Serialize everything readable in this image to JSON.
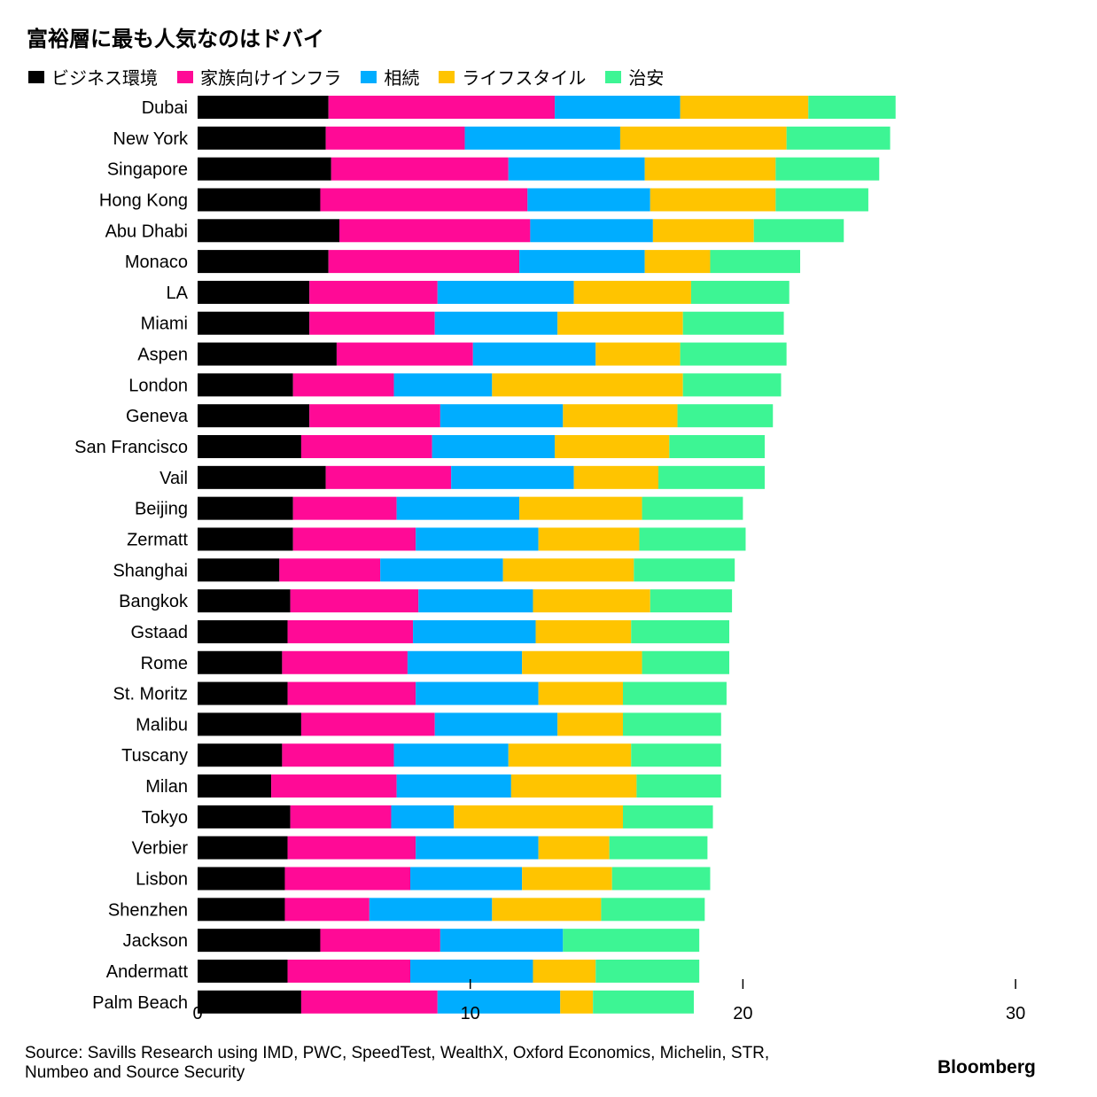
{
  "chart_data": {
    "type": "bar",
    "orientation": "horizontal",
    "stacked": true,
    "title": "富裕層に最も人気なのはドバイ",
    "categories": [
      "Dubai",
      "New York",
      "Singapore",
      "Hong Kong",
      "Abu Dhabi",
      "Monaco",
      "LA",
      "Miami",
      "Aspen",
      "London",
      "Geneva",
      "San Francisco",
      "Vail",
      "Beijing",
      "Zermatt",
      "Shanghai",
      "Bangkok",
      "Gstaad",
      "Rome",
      "St. Moritz",
      "Malibu",
      "Tuscany",
      "Milan",
      "Tokyo",
      "Verbier",
      "Lisbon",
      "Shenzhen",
      "Jackson",
      "Andermatt",
      "Palm Beach"
    ],
    "series": [
      {
        "name": "ビジネス環境",
        "color": "#000000",
        "values": [
          4.8,
          4.7,
          4.9,
          4.5,
          5.2,
          4.8,
          4.1,
          4.1,
          5.1,
          3.5,
          4.1,
          3.8,
          4.7,
          3.5,
          3.5,
          3.0,
          3.4,
          3.3,
          3.1,
          3.3,
          3.8,
          3.1,
          2.7,
          3.4,
          3.3,
          3.2,
          3.2,
          4.5,
          3.3,
          3.8
        ]
      },
      {
        "name": "家族向けインフラ",
        "color": "#ff0a96",
        "values": [
          8.3,
          5.1,
          6.5,
          7.6,
          7.0,
          7.0,
          4.7,
          4.6,
          5.0,
          3.7,
          4.8,
          4.8,
          4.6,
          3.8,
          4.5,
          3.7,
          4.7,
          4.6,
          4.6,
          4.7,
          4.9,
          4.1,
          4.6,
          3.7,
          4.7,
          4.6,
          3.1,
          4.4,
          4.5,
          5.0
        ]
      },
      {
        "name": "相続",
        "color": "#00adff",
        "values": [
          4.6,
          5.7,
          5.0,
          4.5,
          4.5,
          4.6,
          5.0,
          4.5,
          4.5,
          3.6,
          4.5,
          4.5,
          4.5,
          4.5,
          4.5,
          4.5,
          4.2,
          4.5,
          4.2,
          4.5,
          4.5,
          4.2,
          4.2,
          2.3,
          4.5,
          4.1,
          4.5,
          4.5,
          4.5,
          4.5
        ]
      },
      {
        "name": "ライフスタイル",
        "color": "#ffc400",
        "values": [
          4.7,
          6.1,
          4.8,
          4.6,
          3.7,
          2.4,
          4.3,
          4.6,
          3.1,
          7.0,
          4.2,
          4.2,
          3.1,
          4.5,
          3.7,
          4.8,
          4.3,
          3.5,
          4.4,
          3.1,
          2.4,
          4.5,
          4.6,
          6.2,
          2.6,
          3.3,
          4.0,
          0,
          2.3,
          1.2
        ]
      },
      {
        "name": "治安",
        "color": "#3df594",
        "values": [
          3.2,
          3.8,
          3.8,
          3.4,
          3.3,
          3.3,
          3.6,
          3.7,
          3.9,
          3.6,
          3.5,
          3.5,
          3.9,
          3.7,
          3.9,
          3.7,
          3.0,
          3.6,
          3.2,
          3.8,
          3.6,
          3.3,
          3.1,
          3.3,
          3.6,
          3.6,
          3.8,
          5.0,
          3.8,
          3.7
        ]
      }
    ],
    "xlim": [
      0,
      30
    ],
    "xticks": [
      0,
      10,
      20,
      30
    ],
    "xtick_labels": [
      "0",
      "10",
      "20",
      "30"
    ],
    "legend_position": "top-left",
    "grid": false
  },
  "source": "Source: Savills Research using IMD, PWC, SpeedTest, WealthX, Oxford Economics, Michelin, STR, Numbeo and Source Security",
  "brand": "Bloomberg"
}
